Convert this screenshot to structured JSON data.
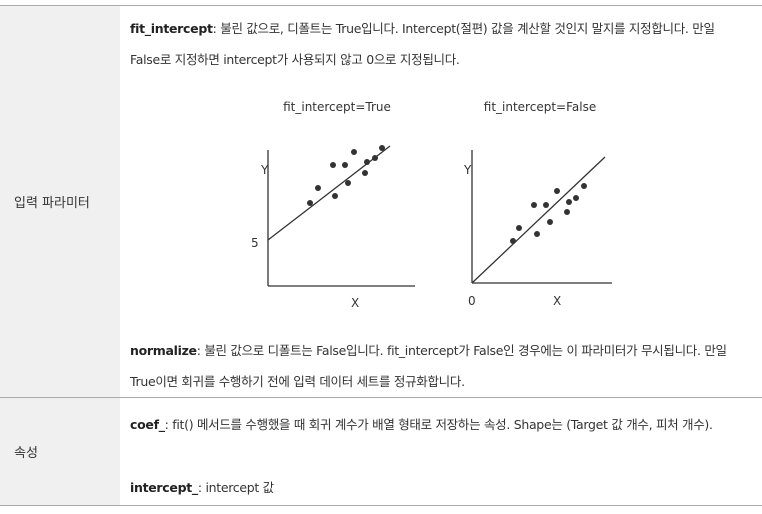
{
  "table": {
    "rows": [
      {
        "header": "입력 파라미터",
        "items": [
          {
            "term": "fit_intercept",
            "text": ": 불린 값으로, 디폴트는 True입니다. Intercept(절편) 값을 계산할 것인지 말지를 지정합니다. 만일 False로 지정하면 intercept가 사용되지 않고 0으로 지정됩니다."
          },
          {
            "term": "normalize",
            "text": ": 불린 값으로 디폴트는 False입니다. fit_intercept가 False인 경우에는 이 파라미터가 무시됩니다. 만일 True이면 회귀를 수행하기 전에 입력 데이터 세트를 정규화합니다."
          }
        ],
        "figures": [
          {
            "title": "fit_intercept=True",
            "y_label": "Y",
            "x_label": "X",
            "intercept_label": "5"
          },
          {
            "title": "fit_intercept=False",
            "y_label": "Y",
            "x_label": "X",
            "origin_label": "0"
          }
        ]
      },
      {
        "header": "속성",
        "items": [
          {
            "term": "coef_",
            "text": ": fit() 메서드를 수행했을 때 회귀 계수가 배열 형태로 저장하는 속성. Shape는 (Target 값 개수, 피처 개수)."
          },
          {
            "term": "intercept_",
            "text": ": intercept 값"
          }
        ]
      }
    ]
  }
}
